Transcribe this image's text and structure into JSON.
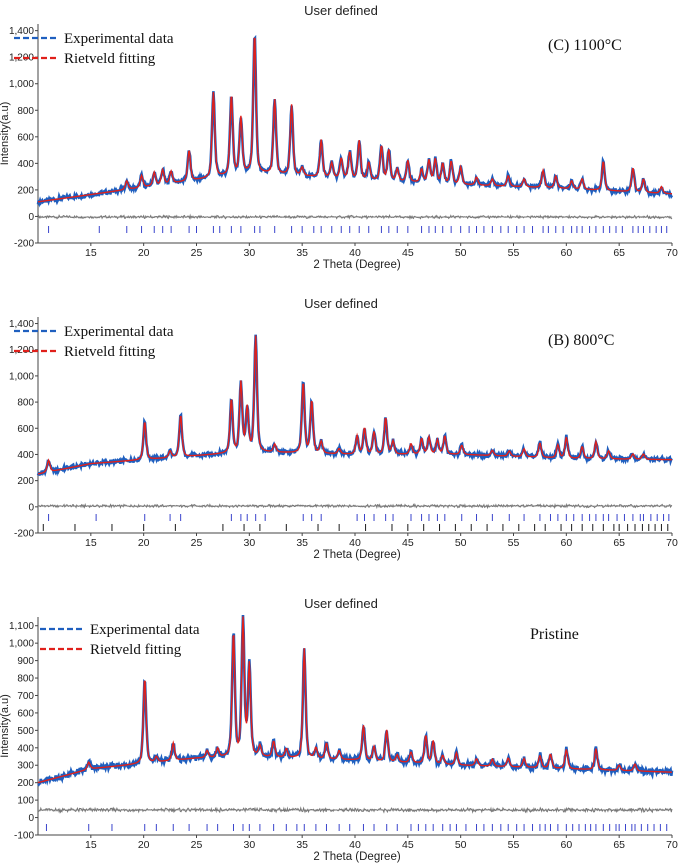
{
  "chart_data": [
    {
      "type": "line",
      "title": "User defined",
      "annotation": "(C) 1100°C",
      "xlabel": "2 Theta (Degree)",
      "ylabel": "Intensity(a.u)",
      "xlim": [
        10,
        70
      ],
      "ylim": [
        -200,
        1450
      ],
      "xticks": [
        15,
        20,
        25,
        30,
        35,
        40,
        45,
        50,
        55,
        60,
        65,
        70
      ],
      "yticks": [
        -200,
        0,
        200,
        400,
        600,
        800,
        1000,
        1200,
        1400
      ],
      "ytick_labels": [
        "-200",
        "0",
        "200",
        "400",
        "600",
        "800",
        "1,000",
        "1,200",
        "1,400"
      ],
      "legend_position": "top-left",
      "grid": false,
      "series": [
        {
          "name": "Experimental data",
          "color": "#1f5fbf",
          "style": "dashed"
        },
        {
          "name": "Rietveld fitting",
          "color": "#e0201b",
          "style": "dashed"
        }
      ],
      "background": {
        "x": [
          10,
          20,
          30,
          40,
          50,
          60,
          70
        ],
        "y": [
          110,
          220,
          330,
          280,
          240,
          210,
          170
        ]
      },
      "peaks": [
        {
          "x": 18.4,
          "h": 65
        },
        {
          "x": 19.8,
          "h": 90
        },
        {
          "x": 21.0,
          "h": 100
        },
        {
          "x": 21.8,
          "h": 110
        },
        {
          "x": 22.6,
          "h": 90
        },
        {
          "x": 24.3,
          "h": 230
        },
        {
          "x": 26.6,
          "h": 640
        },
        {
          "x": 28.3,
          "h": 600
        },
        {
          "x": 29.2,
          "h": 420
        },
        {
          "x": 30.5,
          "h": 1050
        },
        {
          "x": 32.4,
          "h": 560
        },
        {
          "x": 34.0,
          "h": 530
        },
        {
          "x": 35.0,
          "h": 60
        },
        {
          "x": 36.8,
          "h": 280
        },
        {
          "x": 37.8,
          "h": 110
        },
        {
          "x": 38.7,
          "h": 150
        },
        {
          "x": 39.5,
          "h": 200
        },
        {
          "x": 40.4,
          "h": 290
        },
        {
          "x": 41.3,
          "h": 130
        },
        {
          "x": 42.5,
          "h": 260
        },
        {
          "x": 43.2,
          "h": 230
        },
        {
          "x": 44.0,
          "h": 90
        },
        {
          "x": 45.0,
          "h": 160
        },
        {
          "x": 46.3,
          "h": 100
        },
        {
          "x": 47.0,
          "h": 170
        },
        {
          "x": 47.6,
          "h": 180
        },
        {
          "x": 48.3,
          "h": 150
        },
        {
          "x": 49.1,
          "h": 170
        },
        {
          "x": 50.0,
          "h": 130
        },
        {
          "x": 51.5,
          "h": 60
        },
        {
          "x": 53.0,
          "h": 50
        },
        {
          "x": 54.5,
          "h": 80
        },
        {
          "x": 56.0,
          "h": 60
        },
        {
          "x": 57.8,
          "h": 130
        },
        {
          "x": 59.0,
          "h": 90
        },
        {
          "x": 60.5,
          "h": 60
        },
        {
          "x": 61.5,
          "h": 80
        },
        {
          "x": 63.5,
          "h": 220
        },
        {
          "x": 66.3,
          "h": 180
        },
        {
          "x": 67.3,
          "h": 100
        },
        {
          "x": 69.0,
          "h": 50
        }
      ],
      "reflection_rows": [
        {
          "color": "#3a44cc",
          "positions": [
            11,
            15.8,
            18.4,
            19.8,
            21.0,
            21.8,
            22.6,
            24.3,
            25.0,
            26.6,
            27.2,
            28.3,
            29.2,
            30.5,
            31.0,
            32.4,
            34.0,
            35.0,
            36.1,
            36.8,
            37.8,
            38.7,
            39.5,
            40.4,
            41.3,
            42.5,
            43.2,
            44.0,
            45.0,
            46.3,
            47.0,
            47.6,
            48.3,
            49.1,
            50.0,
            50.8,
            51.5,
            52.2,
            53.0,
            53.8,
            54.5,
            55.3,
            56.0,
            56.8,
            57.8,
            58.3,
            59.0,
            59.7,
            60.5,
            61.0,
            61.5,
            62.2,
            62.8,
            63.5,
            64.1,
            64.7,
            65.3,
            66.3,
            66.8,
            67.3,
            67.9,
            68.5,
            69.0,
            69.5
          ]
        }
      ]
    },
    {
      "type": "line",
      "title": "User defined",
      "annotation": "(B) 800°C",
      "xlabel": "2 Theta (Degree)",
      "ylabel": "",
      "xlim": [
        10,
        70
      ],
      "ylim": [
        -200,
        1450
      ],
      "xticks": [
        15,
        20,
        25,
        30,
        35,
        40,
        45,
        50,
        55,
        60,
        65,
        70
      ],
      "yticks": [
        -200,
        0,
        200,
        400,
        600,
        800,
        1000,
        1200,
        1400
      ],
      "ytick_labels": [
        "-200",
        "0",
        "200",
        "400",
        "600",
        "800",
        "1,000",
        "1,200",
        "1,400"
      ],
      "legend_position": "top-left",
      "grid": false,
      "series": [
        {
          "name": "Experimental data",
          "color": "#1f5fbf",
          "style": "dashed"
        },
        {
          "name": "Rietveld fitting",
          "color": "#e0201b",
          "style": "dashed"
        }
      ],
      "background": {
        "x": [
          10,
          15,
          20,
          30,
          40,
          50,
          60,
          70
        ],
        "y": [
          250,
          330,
          360,
          420,
          400,
          400,
          370,
          360
        ]
      },
      "peaks": [
        {
          "x": 11.0,
          "h": 90
        },
        {
          "x": 20.1,
          "h": 290
        },
        {
          "x": 22.5,
          "h": 50
        },
        {
          "x": 23.5,
          "h": 320
        },
        {
          "x": 28.3,
          "h": 410
        },
        {
          "x": 29.2,
          "h": 530
        },
        {
          "x": 29.8,
          "h": 330
        },
        {
          "x": 30.6,
          "h": 880
        },
        {
          "x": 32.4,
          "h": 60
        },
        {
          "x": 35.1,
          "h": 540
        },
        {
          "x": 35.9,
          "h": 400
        },
        {
          "x": 36.8,
          "h": 90
        },
        {
          "x": 38.5,
          "h": 40
        },
        {
          "x": 40.2,
          "h": 140
        },
        {
          "x": 40.9,
          "h": 200
        },
        {
          "x": 41.8,
          "h": 170
        },
        {
          "x": 42.9,
          "h": 280
        },
        {
          "x": 43.6,
          "h": 100
        },
        {
          "x": 45.3,
          "h": 80
        },
        {
          "x": 46.3,
          "h": 120
        },
        {
          "x": 47.0,
          "h": 130
        },
        {
          "x": 47.8,
          "h": 110
        },
        {
          "x": 48.5,
          "h": 140
        },
        {
          "x": 50.1,
          "h": 70
        },
        {
          "x": 53.0,
          "h": 40
        },
        {
          "x": 54.6,
          "h": 40
        },
        {
          "x": 56.0,
          "h": 60
        },
        {
          "x": 57.5,
          "h": 110
        },
        {
          "x": 59.2,
          "h": 100
        },
        {
          "x": 60.0,
          "h": 160
        },
        {
          "x": 61.5,
          "h": 90
        },
        {
          "x": 62.8,
          "h": 130
        },
        {
          "x": 64.0,
          "h": 60
        },
        {
          "x": 66.3,
          "h": 40
        },
        {
          "x": 67.3,
          "h": 40
        }
      ],
      "reflection_rows": [
        {
          "color": "#3a44cc",
          "positions": [
            11.0,
            15.5,
            20.1,
            22.5,
            23.5,
            28.3,
            29.2,
            29.8,
            30.6,
            31.5,
            35.1,
            35.9,
            36.8,
            40.2,
            40.9,
            41.8,
            42.9,
            43.6,
            45.3,
            46.3,
            47.0,
            47.8,
            48.5,
            50.1,
            51.5,
            53.0,
            54.6,
            56.0,
            57.5,
            58.5,
            59.2,
            60.0,
            60.7,
            61.5,
            62.2,
            62.8,
            63.5,
            64.0,
            64.8,
            65.5,
            66.3,
            67.0,
            67.3,
            68.0,
            68.6,
            69.2,
            69.7
          ]
        },
        {
          "color": "#1a1a1a",
          "positions": [
            10.5,
            13.5,
            17.0,
            20.0,
            23.0,
            27.5,
            29.5,
            31.0,
            33.5,
            36.5,
            38.5,
            41.0,
            43.5,
            45.0,
            46.5,
            48.0,
            49.5,
            51.0,
            52.5,
            54.0,
            55.5,
            57.0,
            58.0,
            59.5,
            60.5,
            61.5,
            62.5,
            63.5,
            64.5,
            65.0,
            65.8,
            66.5,
            67.2,
            67.8,
            68.4,
            69.0,
            69.6
          ]
        }
      ]
    },
    {
      "type": "line",
      "title": "User defined",
      "annotation": "Pristine",
      "xlabel": "2 Theta (Degree)",
      "ylabel": "Intensity(a.u)",
      "xlim": [
        10,
        70
      ],
      "ylim": [
        -100,
        1150
      ],
      "xticks": [
        15,
        20,
        25,
        30,
        35,
        40,
        45,
        50,
        55,
        60,
        65,
        70
      ],
      "yticks": [
        -100,
        0,
        100,
        200,
        300,
        400,
        500,
        600,
        700,
        800,
        900,
        1000,
        1100
      ],
      "ytick_labels": [
        "-100",
        "0",
        "100",
        "200",
        "300",
        "400",
        "500",
        "600",
        "700",
        "800",
        "900",
        "1,000",
        "1,100"
      ],
      "legend_position": "top-left",
      "grid": false,
      "series": [
        {
          "name": "Experimental data",
          "color": "#1f5fbf",
          "style": "dashed"
        },
        {
          "name": "Rietveld fitting",
          "color": "#e0201b",
          "style": "dashed"
        }
      ],
      "background": {
        "x": [
          10,
          15,
          20,
          25,
          30,
          35,
          40,
          50,
          60,
          70
        ],
        "y": [
          200,
          280,
          310,
          340,
          350,
          340,
          330,
          300,
          280,
          260
        ]
      },
      "peaks": [
        {
          "x": 14.8,
          "h": 40
        },
        {
          "x": 20.1,
          "h": 490
        },
        {
          "x": 21.2,
          "h": 30
        },
        {
          "x": 22.8,
          "h": 100
        },
        {
          "x": 26.0,
          "h": 40
        },
        {
          "x": 27.0,
          "h": 50
        },
        {
          "x": 28.5,
          "h": 710
        },
        {
          "x": 29.4,
          "h": 780
        },
        {
          "x": 30.0,
          "h": 520
        },
        {
          "x": 31.0,
          "h": 60
        },
        {
          "x": 32.3,
          "h": 90
        },
        {
          "x": 33.5,
          "h": 50
        },
        {
          "x": 35.2,
          "h": 630
        },
        {
          "x": 36.3,
          "h": 60
        },
        {
          "x": 37.3,
          "h": 90
        },
        {
          "x": 38.5,
          "h": 50
        },
        {
          "x": 40.8,
          "h": 200
        },
        {
          "x": 41.8,
          "h": 80
        },
        {
          "x": 43.0,
          "h": 180
        },
        {
          "x": 44.0,
          "h": 40
        },
        {
          "x": 45.3,
          "h": 60
        },
        {
          "x": 46.7,
          "h": 160
        },
        {
          "x": 47.4,
          "h": 130
        },
        {
          "x": 48.3,
          "h": 50
        },
        {
          "x": 49.6,
          "h": 70
        },
        {
          "x": 51.5,
          "h": 40
        },
        {
          "x": 53.0,
          "h": 40
        },
        {
          "x": 54.5,
          "h": 50
        },
        {
          "x": 56.0,
          "h": 50
        },
        {
          "x": 57.5,
          "h": 70
        },
        {
          "x": 58.5,
          "h": 80
        },
        {
          "x": 60.0,
          "h": 110
        },
        {
          "x": 62.8,
          "h": 120
        },
        {
          "x": 65.0,
          "h": 30
        },
        {
          "x": 66.5,
          "h": 40
        }
      ],
      "reflection_rows": [
        {
          "color": "#3a44cc",
          "positions": [
            10.8,
            14.8,
            17.0,
            20.1,
            21.2,
            22.8,
            24.3,
            26.0,
            27.0,
            28.5,
            29.4,
            30.0,
            31.0,
            32.3,
            33.5,
            34.5,
            35.2,
            36.3,
            37.3,
            38.5,
            39.5,
            40.8,
            41.8,
            43.0,
            44.0,
            45.3,
            46.0,
            46.7,
            47.4,
            48.3,
            49.0,
            49.6,
            50.5,
            51.5,
            52.2,
            53.0,
            53.8,
            54.5,
            55.3,
            56.0,
            56.8,
            57.5,
            58.0,
            58.5,
            59.2,
            60.0,
            60.6,
            61.2,
            61.8,
            62.3,
            62.8,
            63.5,
            64.1,
            64.7,
            65.0,
            65.6,
            66.2,
            66.5,
            67.1,
            67.7,
            68.3,
            68.9,
            69.5
          ]
        }
      ]
    }
  ]
}
